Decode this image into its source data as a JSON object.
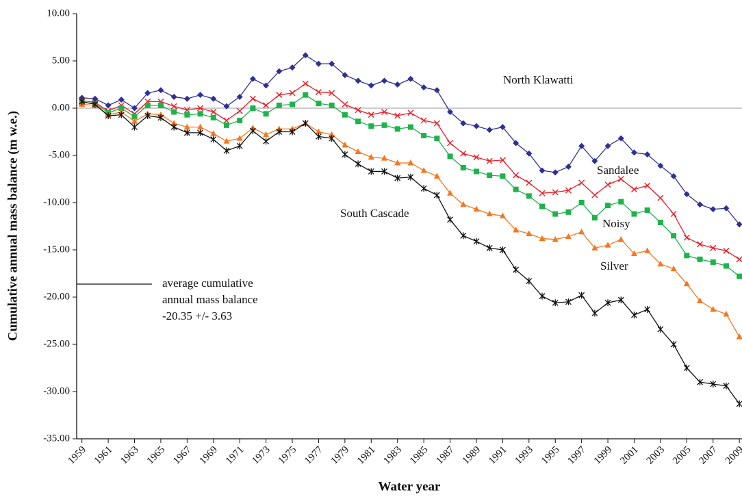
{
  "chart_data": {
    "type": "line",
    "x_label": "Water year",
    "y_label": "Cumulative annual mass balance (m w.e.)",
    "x": [
      1959,
      1960,
      1961,
      1962,
      1963,
      1964,
      1965,
      1966,
      1967,
      1968,
      1969,
      1970,
      1971,
      1972,
      1973,
      1974,
      1975,
      1976,
      1977,
      1978,
      1979,
      1980,
      1981,
      1982,
      1983,
      1984,
      1985,
      1986,
      1987,
      1988,
      1989,
      1990,
      1991,
      1992,
      1993,
      1994,
      1995,
      1996,
      1997,
      1998,
      1999,
      2000,
      2001,
      2002,
      2003,
      2004,
      2005,
      2006,
      2007,
      2008,
      2009
    ],
    "xlim": [
      1958.6,
      2009.2
    ],
    "xticks": [
      1959,
      1961,
      1963,
      1965,
      1967,
      1969,
      1971,
      1973,
      1975,
      1977,
      1979,
      1981,
      1983,
      1985,
      1987,
      1989,
      1991,
      1993,
      1995,
      1997,
      1999,
      2001,
      2003,
      2005,
      2007,
      2009
    ],
    "ylim": [
      -35,
      10
    ],
    "yticks": [
      {
        "value": 10,
        "label": "10.00"
      },
      {
        "value": 5,
        "label": "5.00"
      },
      {
        "value": 0,
        "label": "0.00"
      },
      {
        "value": -5,
        "label": "-5.00"
      },
      {
        "value": -10,
        "label": "-10.00"
      },
      {
        "value": -15,
        "label": "-15.00"
      },
      {
        "value": -20,
        "label": "-20.00"
      },
      {
        "value": -25,
        "label": "-25.00"
      },
      {
        "value": -30,
        "label": "-30.00"
      },
      {
        "value": -35,
        "label": "-35.00"
      }
    ],
    "zero_line": true,
    "series": [
      {
        "name": "North Klawatti",
        "color": "#2e3192",
        "marker": "diamond",
        "values": [
          1.1,
          1.0,
          0.3,
          0.9,
          0.0,
          1.6,
          1.9,
          1.2,
          1.0,
          1.4,
          1.0,
          0.2,
          1.2,
          3.1,
          2.4,
          3.9,
          4.3,
          5.6,
          4.7,
          4.7,
          3.5,
          2.9,
          2.4,
          2.9,
          2.5,
          3.1,
          2.2,
          1.9,
          -0.4,
          -1.6,
          -1.9,
          -2.3,
          -2.0,
          -3.7,
          -4.8,
          -6.6,
          -6.8,
          -6.2,
          -4.0,
          -5.6,
          -4.0,
          -3.2,
          -4.7,
          -4.9,
          -6.1,
          -7.2,
          -9.1,
          -10.2,
          -10.7,
          -10.6,
          -12.3
        ]
      },
      {
        "name": "Sandalee",
        "color": "#ed1c24",
        "marker": "x",
        "values": [
          0.8,
          0.6,
          -0.3,
          0.3,
          -0.6,
          0.7,
          0.7,
          0.2,
          -0.2,
          0.0,
          -0.4,
          -1.3,
          -0.3,
          1.0,
          0.3,
          1.4,
          1.6,
          2.6,
          1.7,
          1.6,
          0.4,
          -0.2,
          -0.7,
          -0.4,
          -0.8,
          -0.5,
          -1.3,
          -1.6,
          -3.7,
          -4.8,
          -5.2,
          -5.6,
          -5.5,
          -7.1,
          -7.9,
          -9.0,
          -8.9,
          -8.7,
          -7.9,
          -9.2,
          -8.1,
          -7.5,
          -8.6,
          -8.2,
          -9.5,
          -11.2,
          -13.7,
          -14.4,
          -14.8,
          -15.1,
          -16.0
        ]
      },
      {
        "name": "Noisy",
        "color": "#1db34b",
        "marker": "square",
        "values": [
          0.6,
          0.5,
          -0.5,
          0.0,
          -0.9,
          0.3,
          0.3,
          -0.4,
          -0.7,
          -0.6,
          -1.0,
          -1.8,
          -1.3,
          0.0,
          -0.6,
          0.3,
          0.4,
          1.4,
          0.5,
          0.3,
          -0.7,
          -1.4,
          -1.9,
          -1.8,
          -2.2,
          -2.0,
          -2.9,
          -3.2,
          -5.1,
          -6.3,
          -6.7,
          -7.1,
          -7.2,
          -8.6,
          -9.3,
          -10.4,
          -11.2,
          -11.0,
          -10.0,
          -11.6,
          -10.3,
          -9.9,
          -11.2,
          -10.8,
          -12.1,
          -13.5,
          -15.6,
          -16.0,
          -16.3,
          -16.7,
          -17.8
        ]
      },
      {
        "name": "Silver",
        "color": "#f7761f",
        "marker": "triangle",
        "values": [
          0.4,
          0.3,
          -0.7,
          -0.4,
          -1.4,
          -0.6,
          -0.7,
          -1.6,
          -2.0,
          -2.0,
          -2.7,
          -3.5,
          -3.2,
          -2.1,
          -2.8,
          -2.2,
          -2.2,
          -1.6,
          -2.5,
          -2.8,
          -3.9,
          -4.6,
          -5.2,
          -5.3,
          -5.8,
          -5.8,
          -6.6,
          -7.2,
          -9.0,
          -10.2,
          -10.7,
          -11.2,
          -11.4,
          -12.9,
          -13.3,
          -13.8,
          -13.9,
          -13.6,
          -13.1,
          -14.8,
          -14.5,
          -13.9,
          -15.4,
          -15.1,
          -16.5,
          -17.0,
          -18.6,
          -20.4,
          -21.3,
          -21.8,
          -24.2
        ]
      },
      {
        "name": "South Cascade",
        "color": "#111111",
        "marker": "asterisk",
        "values": [
          0.7,
          0.4,
          -0.8,
          -0.7,
          -2.0,
          -0.8,
          -1.0,
          -2.0,
          -2.6,
          -2.6,
          -3.3,
          -4.5,
          -4.0,
          -2.4,
          -3.5,
          -2.5,
          -2.5,
          -1.6,
          -3.0,
          -3.2,
          -4.9,
          -5.9,
          -6.7,
          -6.7,
          -7.4,
          -7.3,
          -8.5,
          -9.2,
          -11.8,
          -13.5,
          -14.1,
          -14.8,
          -15.0,
          -17.1,
          -18.3,
          -19.9,
          -20.6,
          -20.5,
          -19.8,
          -21.7,
          -20.6,
          -20.3,
          -21.9,
          -21.3,
          -23.4,
          -25.0,
          -27.5,
          -29.0,
          -29.2,
          -29.4,
          -31.3
        ]
      }
    ],
    "annotation": [
      "average cumulative",
      "annual mass balance",
      "-20.35 +/- 3.63"
    ]
  }
}
